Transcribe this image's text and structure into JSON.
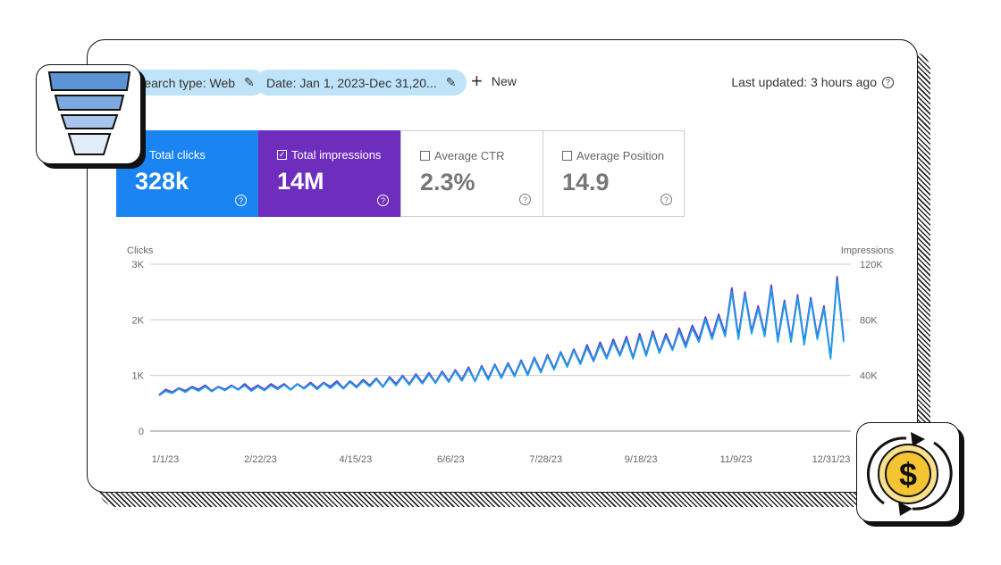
{
  "filters": {
    "search_type": "Search type: Web",
    "date": "Date: Jan 1, 2023-Dec 31,20...",
    "new_label": "New",
    "last_updated": "Last updated: 3 hours ago"
  },
  "metrics": [
    {
      "label": "Total clicks",
      "value": "328k",
      "checked": true,
      "color": "#1a84f2"
    },
    {
      "label": "Total impressions",
      "value": "14M",
      "checked": true,
      "color": "#6f2dbd"
    },
    {
      "label": "Average CTR",
      "value": "2.3%",
      "checked": false
    },
    {
      "label": "Average Position",
      "value": "14.9",
      "checked": false
    }
  ],
  "icons": {
    "funnel": "funnel-icon",
    "money": "dollar-cycle-icon",
    "help": "help-circle-icon",
    "edit": "pencil-icon"
  },
  "chart_data": {
    "type": "line",
    "ylabel_left": "Clicks",
    "ylabel_right": "Impressions",
    "left_ticks": [
      "0",
      "1K",
      "2K",
      "3K"
    ],
    "right_ticks": [
      "40K",
      "80K",
      "120K"
    ],
    "ylim_left": [
      0,
      3000
    ],
    "ylim_right": [
      0,
      120000
    ],
    "x_ticks": [
      "1/1/23",
      "2/22/23",
      "4/15/23",
      "6/6/23",
      "7/28/23",
      "9/18/23",
      "11/9/23",
      "12/31/23"
    ],
    "x_range": [
      "2023-01-01",
      "2023-12-31"
    ],
    "grid": true,
    "series": [
      {
        "name": "Clicks",
        "color": "#1aa0e8",
        "axis": "left",
        "values": [
          640,
          720,
          680,
          760,
          700,
          780,
          720,
          800,
          710,
          790,
          730,
          810,
          740,
          820,
          720,
          800,
          730,
          820,
          750,
          830,
          740,
          840,
          760,
          850,
          750,
          860,
          770,
          870,
          760,
          880,
          780,
          900,
          800,
          930,
          790,
          950,
          820,
          980,
          830,
          1000,
          850,
          1020,
          860,
          1050,
          880,
          1080,
          900,
          1120,
          890,
          1150,
          920,
          1180,
          950,
          1200,
          980,
          1250,
          1000,
          1300,
          1050,
          1350,
          1100,
          1400,
          1150,
          1450,
          1200,
          1500,
          1250,
          1550,
          1300,
          1600,
          1350,
          1650,
          1300,
          1700,
          1350,
          1750,
          1400,
          1700,
          1450,
          1800,
          1500,
          1850,
          1600,
          2000,
          1650,
          2050,
          1700,
          2500,
          1650,
          2450,
          1750,
          2200,
          1700,
          2550,
          1600,
          2300,
          1600,
          2400,
          1550,
          2350,
          1650,
          2200,
          1300,
          2700,
          1600
        ]
      },
      {
        "name": "Impressions",
        "color": "#6a35c8",
        "axis": "right",
        "values": [
          26000,
          30000,
          28000,
          31000,
          29000,
          32000,
          30000,
          33000,
          29000,
          32000,
          30000,
          33000,
          30000,
          34000,
          30000,
          33000,
          30000,
          34000,
          31000,
          34000,
          30000,
          34000,
          31000,
          35000,
          31000,
          35000,
          32000,
          36000,
          31000,
          36000,
          32000,
          37000,
          33000,
          38000,
          32000,
          39000,
          34000,
          40000,
          34000,
          41000,
          35000,
          42000,
          35000,
          43000,
          36000,
          44000,
          37000,
          46000,
          36000,
          47000,
          38000,
          48000,
          39000,
          49000,
          40000,
          51000,
          41000,
          53000,
          43000,
          55000,
          45000,
          57000,
          47000,
          59000,
          49000,
          62000,
          51000,
          64000,
          53000,
          66000,
          55000,
          68000,
          53000,
          70000,
          55000,
          72000,
          57000,
          70000,
          59000,
          74000,
          62000,
          76000,
          66000,
          82000,
          68000,
          84000,
          70000,
          103000,
          68000,
          100000,
          72000,
          90000,
          70000,
          105000,
          66000,
          94000,
          66000,
          98000,
          64000,
          96000,
          68000,
          90000,
          53000,
          111000,
          66000
        ]
      }
    ]
  }
}
